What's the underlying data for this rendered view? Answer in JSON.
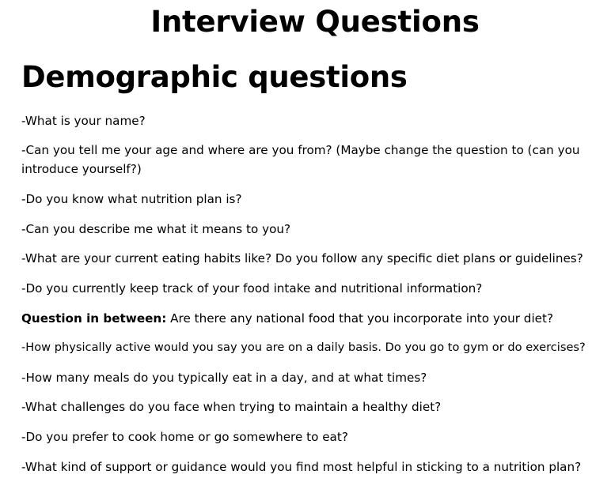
{
  "document": {
    "title": "Interview Questions",
    "section_heading": "Demographic questions",
    "questions": [
      "-What is your name?",
      "-Can you tell me your age and where are you from? (Maybe change the question to (can you introduce yourself?)",
      "-Do you know what nutrition plan is?",
      "-Can you describe me what it means to you?",
      "-What are your current eating habits like? Do you follow any specific diet plans or guidelines?",
      "-Do you currently keep track of your food intake and nutritional information?"
    ],
    "in_between": {
      "label": "Question in between:",
      "text": " Are there any national food that you incorporate into your diet?"
    },
    "more_questions": [
      "-How physically active would you say you are on a daily basis. Do you go to gym or do exercises?",
      "-How many meals do you typically eat in a day, and at what times?",
      "-What challenges do you face when trying to maintain a healthy diet?",
      "-Do you prefer to cook home or go somewhere to eat?",
      "-What kind of support or guidance would you find most helpful in sticking to a nutrition plan?"
    ]
  }
}
